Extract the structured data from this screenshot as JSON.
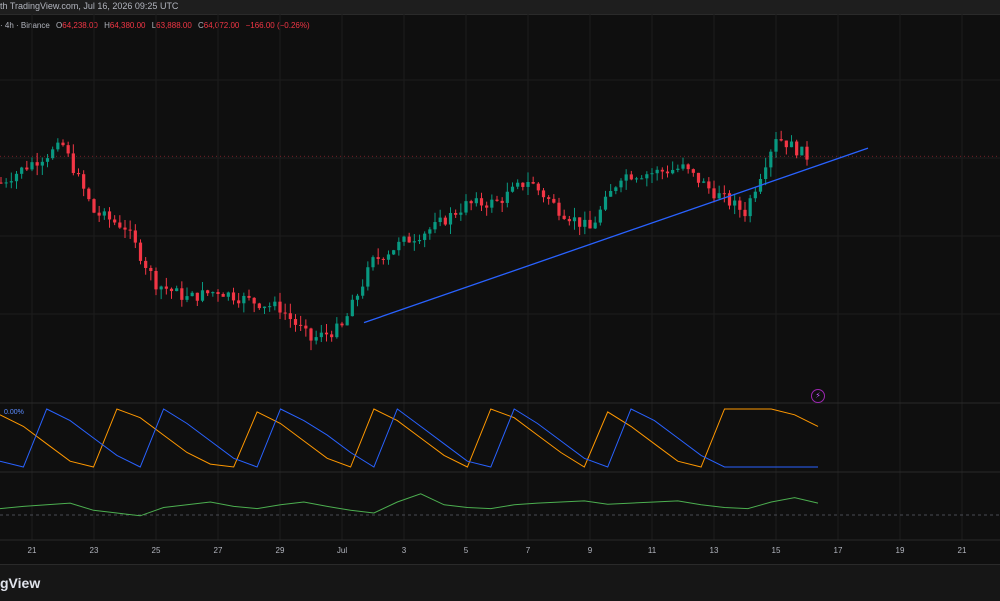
{
  "header": {
    "caption": "th TradingView.com, Jul 16, 2026 09:25 UTC",
    "symbol": "· 4h · Binance",
    "open_label": "O",
    "open": "64,238.00",
    "high_label": "H",
    "high": "64,380.00",
    "low_label": "L",
    "low": "63,888.00",
    "close_label": "C",
    "close": "64,072.00",
    "change": "−166.00 (−0.26%)"
  },
  "indicator_label": "0.00%",
  "footer_brand": "gView",
  "colors": {
    "up": "#089981",
    "down": "#f23645",
    "trendline": "#2962ff",
    "aroon_up": "#ff9800",
    "aroon_down": "#2962ff",
    "oscillator": "#4caf50",
    "background": "#0f0f0f"
  },
  "chart_data": [
    {
      "type": "candlestick",
      "interval": "4h",
      "x_tick_labels": [
        "21",
        "23",
        "25",
        "27",
        "29",
        "Jul",
        "3",
        "5",
        "7",
        "9",
        "11",
        "13",
        "15",
        "17",
        "19",
        "21"
      ],
      "approx_price_points": [
        {
          "t": "Jun 20",
          "price": 63000
        },
        {
          "t": "Jun 21",
          "price": 63800
        },
        {
          "t": "Jun 22",
          "price": 64500
        },
        {
          "t": "Jun 23",
          "price": 61800
        },
        {
          "t": "Jun 24",
          "price": 61200
        },
        {
          "t": "Jun 25",
          "price": 58900
        },
        {
          "t": "Jun 26",
          "price": 58300
        },
        {
          "t": "Jun 27",
          "price": 58600
        },
        {
          "t": "Jun 28",
          "price": 58200
        },
        {
          "t": "Jun 29",
          "price": 57900
        },
        {
          "t": "Jun 30",
          "price": 56600
        },
        {
          "t": "Jul 1",
          "price": 57100
        },
        {
          "t": "Jul 2",
          "price": 59800
        },
        {
          "t": "Jul 3",
          "price": 60600
        },
        {
          "t": "Jul 4",
          "price": 61200
        },
        {
          "t": "Jul 5",
          "price": 62100
        },
        {
          "t": "Jul 6",
          "price": 62200
        },
        {
          "t": "Jul 7",
          "price": 63100
        },
        {
          "t": "Jul 8",
          "price": 61900
        },
        {
          "t": "Jul 9",
          "price": 61100
        },
        {
          "t": "Jul 10",
          "price": 63300
        },
        {
          "t": "Jul 11",
          "price": 63400
        },
        {
          "t": "Jul 12",
          "price": 63600
        },
        {
          "t": "Jul 13",
          "price": 62600
        },
        {
          "t": "Jul 14",
          "price": 61800
        },
        {
          "t": "Jul 15",
          "price": 64900
        },
        {
          "t": "Jul 16",
          "price": 64072
        }
      ],
      "last": {
        "open": 64238,
        "high": 64380,
        "low": 63888,
        "close": 64072
      },
      "trendline": {
        "start": {
          "t": "Jul 1",
          "price": 57300
        },
        "end": {
          "t": "Jul 17",
          "price": 64400
        }
      }
    },
    {
      "type": "line",
      "series": [
        {
          "values": [
            90,
            70,
            40,
            10,
            0,
            100,
            85,
            55,
            25,
            5,
            0,
            95,
            75,
            45,
            15,
            0,
            100,
            80,
            50,
            20,
            0,
            100,
            85,
            55,
            25,
            0,
            95,
            70,
            40,
            10,
            0,
            100,
            100,
            100,
            90,
            70
          ]
        },
        {
          "values": [
            10,
            0,
            100,
            80,
            50,
            20,
            0,
            100,
            75,
            45,
            15,
            0,
            100,
            80,
            55,
            25,
            0,
            100,
            70,
            40,
            10,
            0,
            100,
            75,
            45,
            15,
            0,
            100,
            80,
            50,
            20,
            0,
            0,
            0,
            0,
            0
          ]
        }
      ]
    },
    {
      "type": "line",
      "series": [
        {
          "values": [
            48,
            52,
            55,
            58,
            45,
            40,
            35,
            50,
            55,
            60,
            52,
            48,
            55,
            60,
            52,
            45,
            40,
            60,
            75,
            55,
            50,
            48,
            55,
            58,
            60,
            62,
            56,
            58,
            60,
            62,
            55,
            50,
            48,
            60,
            68,
            58
          ]
        }
      ]
    }
  ]
}
